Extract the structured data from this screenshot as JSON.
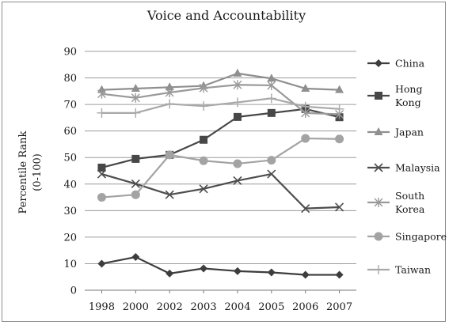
{
  "chart_data": {
    "type": "line",
    "title": "Voice and Accountability",
    "xlabel": "",
    "ylabel": [
      "Percentile Rank",
      "(0-100)"
    ],
    "x": [
      "1998",
      "2000",
      "2002",
      "2003",
      "2004",
      "2005",
      "2006",
      "2007"
    ],
    "ylim": [
      0,
      90
    ],
    "yticks": [
      0,
      10,
      20,
      30,
      40,
      50,
      60,
      70,
      80,
      90
    ],
    "grid": "horizontal",
    "legend_position": "right",
    "series": [
      {
        "name": "China",
        "label_lines": [
          "China"
        ],
        "marker": "diamond",
        "color": "#3d3d3d",
        "values": [
          10,
          12.5,
          6.3,
          8.2,
          7.2,
          6.7,
          5.8,
          5.8
        ]
      },
      {
        "name": "Hong Kong",
        "label_lines": [
          "Hong",
          "Kong"
        ],
        "marker": "square",
        "color": "#474747",
        "values": [
          46.2,
          49.5,
          51,
          56.7,
          65.3,
          66.8,
          68.3,
          65.2
        ]
      },
      {
        "name": "Japan",
        "label_lines": [
          "Japan"
        ],
        "marker": "triangle",
        "color": "#8f8f8f",
        "values": [
          75.5,
          76,
          76.5,
          77,
          81.7,
          79.8,
          76,
          75.5
        ]
      },
      {
        "name": "Malaysia",
        "label_lines": [
          "Malaysia"
        ],
        "marker": "x",
        "color": "#4d4d4d",
        "values": [
          43.8,
          40.1,
          36,
          38.2,
          41.3,
          43.8,
          30.8,
          31.3
        ]
      },
      {
        "name": "South Korea",
        "label_lines": [
          "South",
          "Korea"
        ],
        "marker": "star",
        "color": "#9a9a9a",
        "values": [
          74,
          72.5,
          74.5,
          76.2,
          77.4,
          77.2,
          66.8,
          66.3
        ]
      },
      {
        "name": "Singapore",
        "label_lines": [
          "Singapore"
        ],
        "marker": "circle",
        "color": "#a3a3a3",
        "values": [
          35,
          36,
          51,
          48.8,
          47.7,
          49,
          57.2,
          57
        ]
      },
      {
        "name": "Taiwan",
        "label_lines": [
          "Taiwan"
        ],
        "marker": "plus",
        "color": "#a8a8a8",
        "values": [
          66.8,
          66.8,
          70.2,
          69.4,
          70.8,
          72.3,
          69.2,
          68.3
        ]
      }
    ]
  }
}
